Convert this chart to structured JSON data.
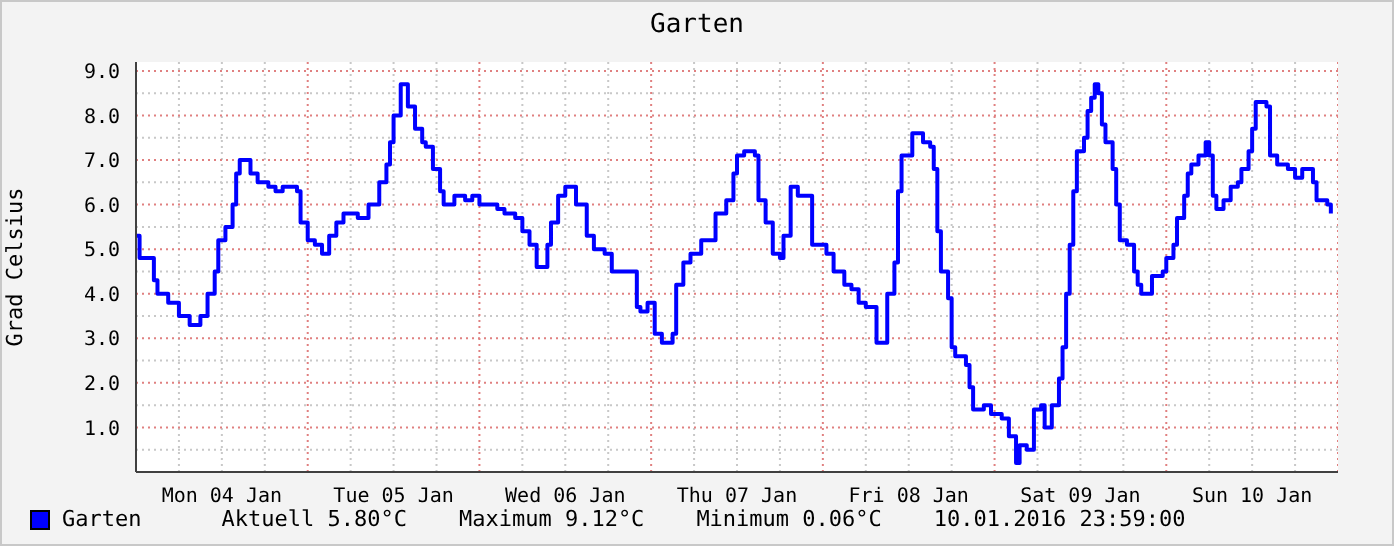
{
  "chart_data": {
    "type": "step",
    "title": "Garten",
    "ylabel": "Grad Celsius",
    "xlim": [
      "2016-01-04T00:00",
      "2016-01-11T00:00"
    ],
    "xticks": [
      {
        "value": "2016-01-04T12:00",
        "label": "Mon 04 Jan"
      },
      {
        "value": "2016-01-05T12:00",
        "label": "Tue 05 Jan"
      },
      {
        "value": "2016-01-06T12:00",
        "label": "Wed 06 Jan"
      },
      {
        "value": "2016-01-07T12:00",
        "label": "Thu 07 Jan"
      },
      {
        "value": "2016-01-08T12:00",
        "label": "Fri 08 Jan"
      },
      {
        "value": "2016-01-09T12:00",
        "label": "Sat 09 Jan"
      },
      {
        "value": "2016-01-10T12:00",
        "label": "Sun 10 Jan"
      }
    ],
    "ylim": [
      0,
      9.2
    ],
    "yticks": [
      {
        "value": 1,
        "label": "1.0"
      },
      {
        "value": 2,
        "label": "2.0"
      },
      {
        "value": 3,
        "label": "3.0"
      },
      {
        "value": 4,
        "label": "4.0"
      },
      {
        "value": 5,
        "label": "5.0"
      },
      {
        "value": 6,
        "label": "6.0"
      },
      {
        "value": 7,
        "label": "7.0"
      },
      {
        "value": 8,
        "label": "8.0"
      },
      {
        "value": 9,
        "label": "9.0"
      }
    ],
    "grid": true,
    "legend": "bottom left",
    "line_style": "solid",
    "marker": "none",
    "series": [
      {
        "name": "Garten",
        "color": "#0000ff",
        "x": [
          "2016-01-04T00:00",
          "2016-01-04T00:30",
          "2016-01-04T02:00",
          "2016-01-04T02:30",
          "2016-01-04T03:00",
          "2016-01-04T04:30",
          "2016-01-04T06:00",
          "2016-01-04T07:30",
          "2016-01-04T08:30",
          "2016-01-04T09:00",
          "2016-01-04T10:00",
          "2016-01-04T11:00",
          "2016-01-04T11:30",
          "2016-01-04T12:30",
          "2016-01-04T13:30",
          "2016-01-04T14:00",
          "2016-01-04T14:30",
          "2016-01-04T15:30",
          "2016-01-04T16:00",
          "2016-01-04T17:00",
          "2016-01-04T18:30",
          "2016-01-04T19:30",
          "2016-01-04T20:30",
          "2016-01-04T22:30",
          "2016-01-04T23:00",
          "2016-01-05T00:00",
          "2016-01-05T01:00",
          "2016-01-05T02:00",
          "2016-01-05T03:00",
          "2016-01-05T04:00",
          "2016-01-05T05:00",
          "2016-01-05T06:00",
          "2016-01-05T07:00",
          "2016-01-05T08:00",
          "2016-01-05T08:30",
          "2016-01-05T10:00",
          "2016-01-05T11:00",
          "2016-01-05T11:30",
          "2016-01-05T12:00",
          "2016-01-05T13:00",
          "2016-01-05T13:30",
          "2016-01-05T14:00",
          "2016-01-05T15:00",
          "2016-01-05T16:00",
          "2016-01-05T16:30",
          "2016-01-05T17:30",
          "2016-01-05T18:30",
          "2016-01-05T19:00",
          "2016-01-05T20:30",
          "2016-01-05T22:00",
          "2016-01-05T23:00",
          "2016-01-06T00:00",
          "2016-01-06T02:30",
          "2016-01-06T03:30",
          "2016-01-06T05:00",
          "2016-01-06T06:00",
          "2016-01-06T07:00",
          "2016-01-06T08:00",
          "2016-01-06T08:30",
          "2016-01-06T09:30",
          "2016-01-06T10:00",
          "2016-01-06T11:00",
          "2016-01-06T12:00",
          "2016-01-06T13:30",
          "2016-01-06T15:00",
          "2016-01-06T16:00",
          "2016-01-06T17:30",
          "2016-01-06T18:30",
          "2016-01-06T20:00",
          "2016-01-06T21:00",
          "2016-01-06T22:00",
          "2016-01-06T22:30",
          "2016-01-06T23:30",
          "2016-01-07T00:30",
          "2016-01-07T01:30",
          "2016-01-07T03:00",
          "2016-01-07T03:30",
          "2016-01-07T04:30",
          "2016-01-07T05:30",
          "2016-01-07T07:00",
          "2016-01-07T08:30",
          "2016-01-07T09:00",
          "2016-01-07T10:30",
          "2016-01-07T11:30",
          "2016-01-07T12:00",
          "2016-01-07T13:00",
          "2016-01-07T14:30",
          "2016-01-07T15:00",
          "2016-01-07T16:00",
          "2016-01-07T17:00",
          "2016-01-07T18:00",
          "2016-01-07T18:30",
          "2016-01-07T19:30",
          "2016-01-07T20:30",
          "2016-01-07T22:00",
          "2016-01-07T22:30",
          "2016-01-08T00:30",
          "2016-01-08T01:30",
          "2016-01-08T03:00",
          "2016-01-08T04:00",
          "2016-01-08T05:00",
          "2016-01-08T06:00",
          "2016-01-08T07:30",
          "2016-01-08T08:00",
          "2016-01-08T09:00",
          "2016-01-08T10:00",
          "2016-01-08T10:30",
          "2016-01-08T11:00",
          "2016-01-08T12:00",
          "2016-01-08T12:30",
          "2016-01-08T14:00",
          "2016-01-08T15:00",
          "2016-01-08T15:30",
          "2016-01-08T16:00",
          "2016-01-08T16:30",
          "2016-01-08T17:30",
          "2016-01-08T18:00",
          "2016-01-08T18:30",
          "2016-01-08T20:00",
          "2016-01-08T20:30",
          "2016-01-08T21:00",
          "2016-01-08T22:30",
          "2016-01-08T23:30",
          "2016-01-09T01:00",
          "2016-01-09T02:00",
          "2016-01-09T03:00",
          "2016-01-09T03:30",
          "2016-01-09T04:30",
          "2016-01-09T05:30",
          "2016-01-09T06:30",
          "2016-01-09T07:00",
          "2016-01-09T08:00",
          "2016-01-09T09:00",
          "2016-01-09T09:30",
          "2016-01-09T10:00",
          "2016-01-09T10:30",
          "2016-01-09T11:00",
          "2016-01-09T11:30",
          "2016-01-09T12:30",
          "2016-01-09T13:00",
          "2016-01-09T13:30",
          "2016-01-09T14:00",
          "2016-01-09T14:30",
          "2016-01-09T15:00",
          "2016-01-09T15:30",
          "2016-01-09T16:30",
          "2016-01-09T17:00",
          "2016-01-09T17:30",
          "2016-01-09T18:30",
          "2016-01-09T19:30",
          "2016-01-09T20:00",
          "2016-01-09T20:30",
          "2016-01-09T21:30",
          "2016-01-09T22:00",
          "2016-01-09T23:30",
          "2016-01-10T00:00",
          "2016-01-10T01:00",
          "2016-01-10T01:30",
          "2016-01-10T02:30",
          "2016-01-10T03:00",
          "2016-01-10T03:30",
          "2016-01-10T04:30",
          "2016-01-10T05:30",
          "2016-01-10T06:00",
          "2016-01-10T06:30",
          "2016-01-10T07:00",
          "2016-01-10T08:00",
          "2016-01-10T09:00",
          "2016-01-10T10:00",
          "2016-01-10T10:30",
          "2016-01-10T11:30",
          "2016-01-10T12:00",
          "2016-01-10T12:30",
          "2016-01-10T13:30",
          "2016-01-10T14:00",
          "2016-01-10T14:30",
          "2016-01-10T15:30",
          "2016-01-10T17:00",
          "2016-01-10T18:00",
          "2016-01-10T19:00",
          "2016-01-10T19:30",
          "2016-01-10T20:30",
          "2016-01-10T21:00",
          "2016-01-10T22:30",
          "2016-01-10T23:00"
        ],
        "values": [
          5.3,
          4.8,
          4.8,
          4.3,
          4.0,
          3.8,
          3.5,
          3.3,
          3.3,
          3.5,
          4.0,
          4.5,
          5.2,
          5.5,
          6.0,
          6.7,
          7.0,
          7.0,
          6.7,
          6.5,
          6.4,
          6.3,
          6.4,
          6.3,
          5.6,
          5.2,
          5.1,
          4.9,
          5.3,
          5.6,
          5.8,
          5.8,
          5.7,
          5.7,
          6.0,
          6.5,
          6.9,
          7.4,
          8.0,
          8.7,
          8.7,
          8.2,
          7.7,
          7.4,
          7.3,
          6.8,
          6.3,
          6.0,
          6.2,
          6.1,
          6.2,
          6.0,
          5.9,
          5.8,
          5.7,
          5.4,
          5.1,
          4.6,
          4.6,
          5.1,
          5.6,
          6.2,
          6.4,
          6.0,
          5.3,
          5.0,
          4.9,
          4.5,
          4.5,
          4.5,
          3.7,
          3.6,
          3.8,
          3.1,
          2.9,
          3.1,
          4.2,
          4.7,
          4.9,
          5.2,
          5.2,
          5.8,
          6.1,
          6.7,
          7.1,
          7.2,
          7.1,
          6.1,
          5.6,
          4.9,
          4.8,
          5.3,
          6.4,
          6.2,
          6.2,
          5.1,
          4.9,
          4.5,
          4.2,
          4.1,
          3.8,
          3.7,
          2.9,
          2.9,
          4.0,
          4.7,
          6.3,
          7.1,
          7.1,
          7.6,
          7.4,
          7.3,
          6.8,
          5.4,
          4.5,
          3.9,
          2.8,
          2.6,
          2.4,
          1.9,
          1.4,
          1.5,
          1.3,
          1.2,
          0.8,
          0.2,
          0.6,
          0.5,
          1.4,
          1.5,
          1.0,
          1.5,
          2.1,
          2.8,
          4.0,
          5.1,
          6.3,
          7.2,
          7.5,
          8.1,
          8.4,
          8.7,
          8.5,
          7.8,
          7.4,
          6.8,
          6.0,
          5.2,
          5.1,
          4.5,
          4.2,
          4.0,
          4.0,
          4.4,
          4.5,
          4.8,
          5.1,
          5.7,
          6.2,
          6.7,
          6.9,
          7.1,
          7.4,
          7.1,
          6.2,
          5.9,
          6.1,
          6.4,
          6.5,
          6.8,
          7.2,
          7.7,
          8.3,
          8.3,
          8.2,
          7.1,
          6.9,
          6.8,
          6.6,
          6.8,
          6.8,
          6.5,
          6.1,
          6.0,
          5.8
        ]
      }
    ],
    "annotations": [
      "Aktuell 5.80°C",
      "Maximum 9.12°C",
      "Minimum 0.06°C",
      "10.01.2016 23:59:00"
    ]
  }
}
